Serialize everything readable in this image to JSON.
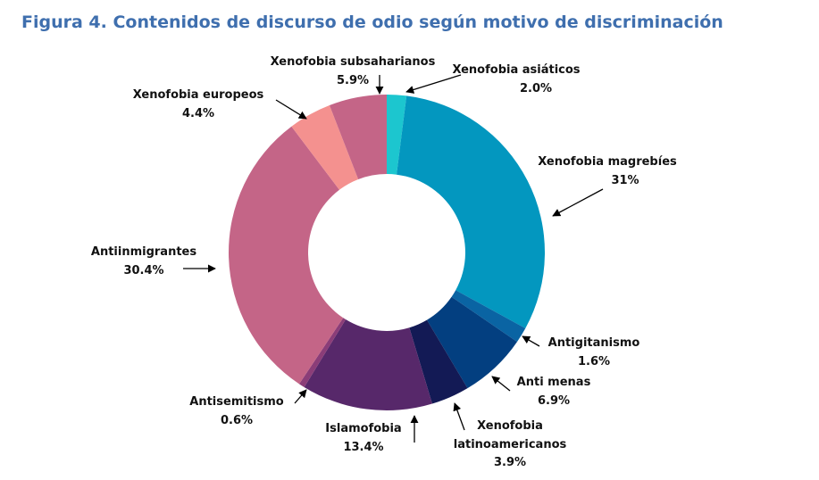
{
  "chart_data": {
    "type": "pie",
    "title": "Figura 4. Contenidos de discurso de odio según motivo de discriminación",
    "slices": [
      {
        "label": "Xenofobia asiáticos",
        "value_label": "2.0%",
        "value": 2.0,
        "color": "#1cc6cf"
      },
      {
        "label": "Xenofobia magrebíes",
        "value_label": "31%",
        "value": 31,
        "color": "#0397bf"
      },
      {
        "label": "Antigitanismo",
        "value_label": "1.6%",
        "value": 1.6,
        "color": "#0a64a3"
      },
      {
        "label": "Anti menas",
        "value_label": "6.9%",
        "value": 6.9,
        "color": "#033f80"
      },
      {
        "label": "Xenofobia latinoamericanos",
        "value_label": "3.9%",
        "value": 3.9,
        "color": "#131a55"
      },
      {
        "label": "Islamofobia",
        "value_label": "13.4%",
        "value": 13.4,
        "color": "#57286a"
      },
      {
        "label": "Antisemitismo",
        "value_label": "0.6%",
        "value": 0.6,
        "color": "#8b3d78"
      },
      {
        "label": "Antiinmigrantes",
        "value_label": "30.4%",
        "value": 30.4,
        "color": "#c46587"
      },
      {
        "label": "Xenofobia europeos",
        "value_label": "4.4%",
        "value": 4.4,
        "color": "#f4918f"
      },
      {
        "label": "Xenofobia subsaharianos",
        "value_label": "5.9%",
        "value": 5.9,
        "color": "#c46587"
      }
    ],
    "legend": "none"
  }
}
